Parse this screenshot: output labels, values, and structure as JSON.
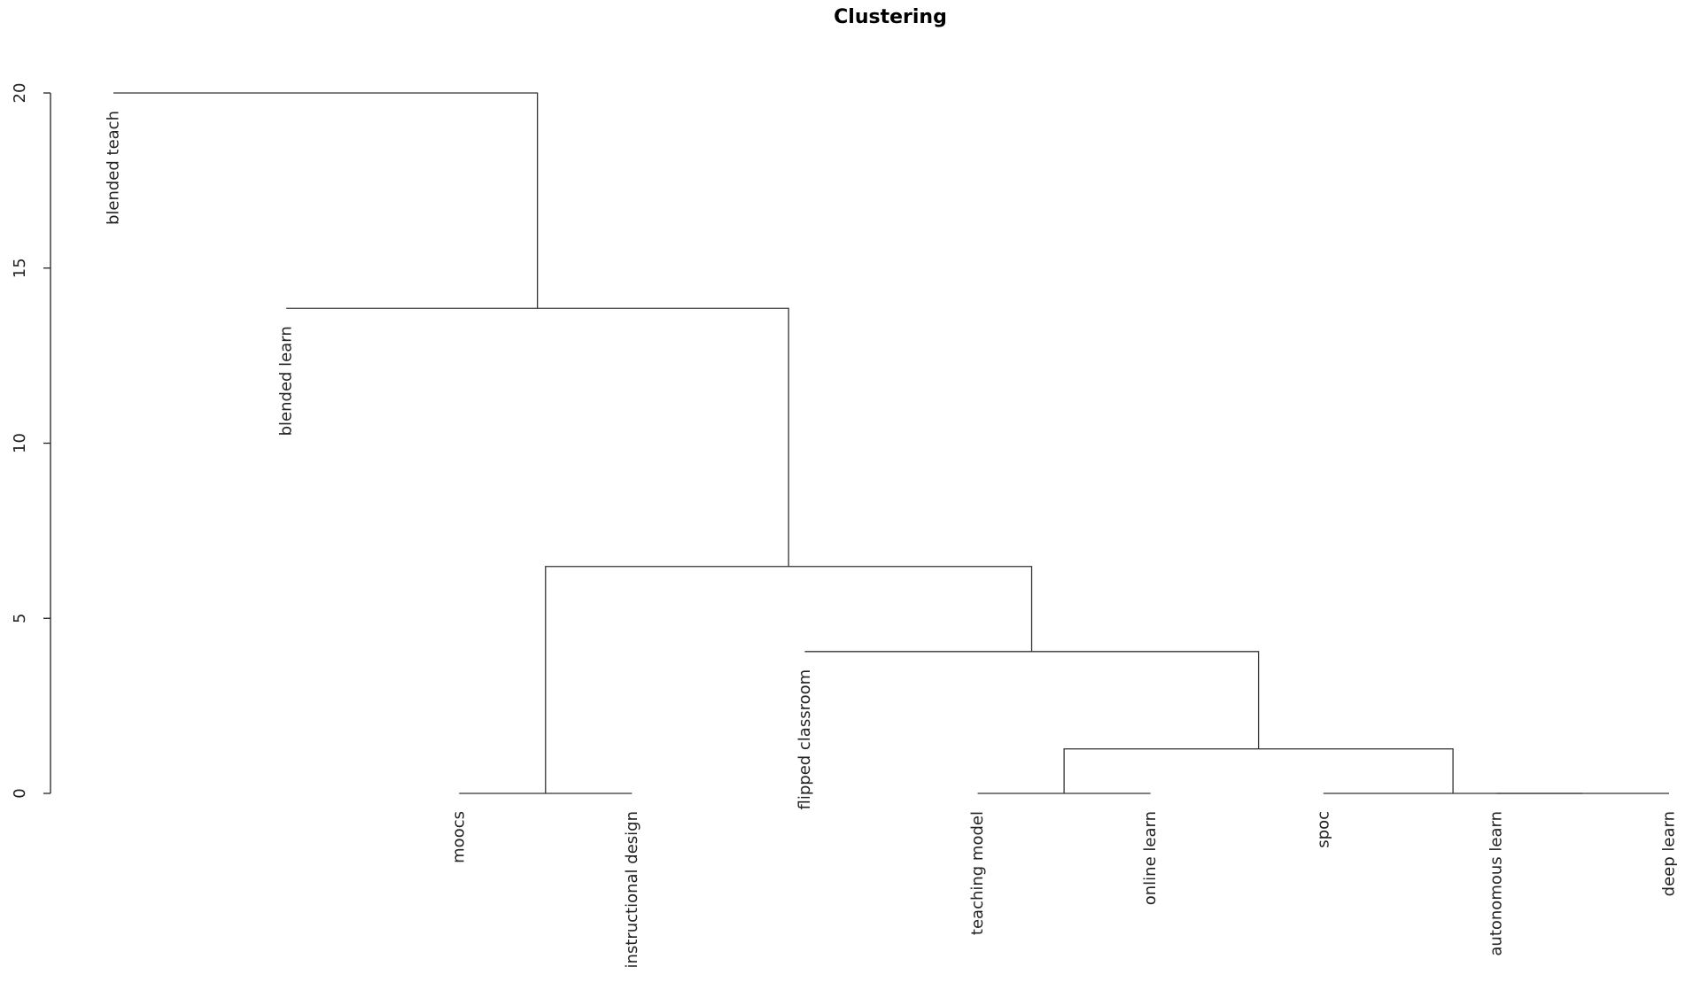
{
  "chart_data": {
    "type": "dendrogram",
    "title": "Clustering",
    "ylim": [
      0,
      20
    ],
    "yticks": [
      0,
      5,
      10,
      15,
      20
    ],
    "leaves": [
      {
        "id": "blended_teach",
        "label": "blended teach",
        "label_top": 20
      },
      {
        "id": "blended_learn",
        "label": "blended learn",
        "label_top": 13.85
      },
      {
        "id": "moocs",
        "label": "moocs",
        "label_top": 0
      },
      {
        "id": "instructional_design",
        "label": "instructional design",
        "label_top": 0
      },
      {
        "id": "flipped_classroom",
        "label": "flipped classroom",
        "label_top": 4.05
      },
      {
        "id": "teaching_model",
        "label": "teaching model",
        "label_top": 0
      },
      {
        "id": "online_learn",
        "label": "online learn",
        "label_top": 0
      },
      {
        "id": "spoc",
        "label": "spoc",
        "label_top": 0
      },
      {
        "id": "autonomous_learn",
        "label": "autonomous learn",
        "label_top": 0
      },
      {
        "id": "deep_learn",
        "label": "deep learn",
        "label_top": 0
      }
    ],
    "merges": [
      {
        "left": "autonomous_learn",
        "right": "deep_learn",
        "height": 0
      },
      {
        "left": "spoc",
        "right": "autonomous_learn+deep_learn",
        "height": 0
      },
      {
        "left": "moocs",
        "right": "instructional_design",
        "height": 0
      },
      {
        "left": "teaching_model",
        "right": "online_learn",
        "height": 0
      },
      {
        "left": "teaching_model+online_learn",
        "right": "spoc+autonomous_learn+deep_learn",
        "height": 1.27
      },
      {
        "left": "flipped_classroom",
        "right": "teaching_model+online_learn+spoc+autonomous_learn+deep_learn",
        "height": 4.05
      },
      {
        "left": "moocs+instructional_design",
        "right": "flipped_classroom+teaching_model+online_learn+spoc+autonomous_learn+deep_learn",
        "height": 6.48
      },
      {
        "left": "blended_learn",
        "right": "moocs+instructional_design+flipped_classroom+teaching_model+online_learn+spoc+autonomous_learn+deep_learn",
        "height": 13.85
      },
      {
        "left": "blended_teach",
        "right": "blended_learn+moocs+instructional_design+flipped_classroom+teaching_model+online_learn+spoc+autonomous_learn+deep_learn",
        "height": 20
      }
    ]
  }
}
